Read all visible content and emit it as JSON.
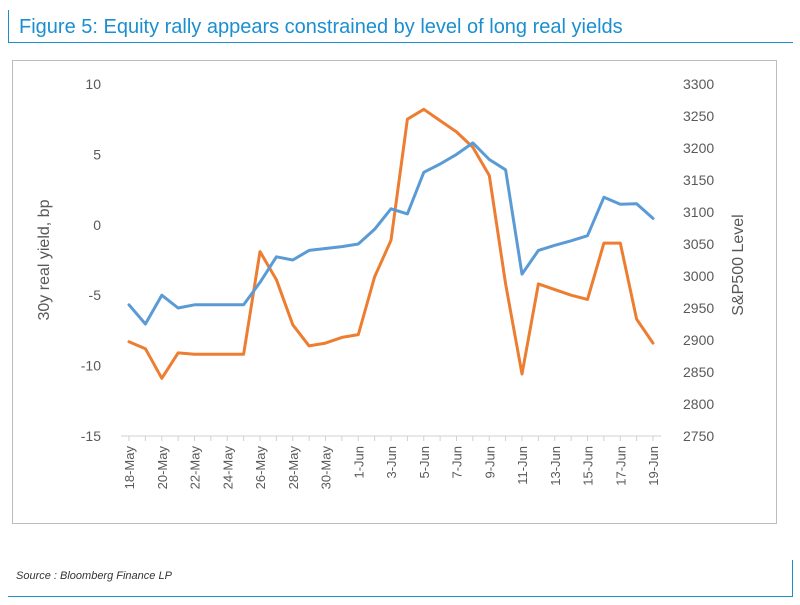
{
  "figure": {
    "title": "Figure 5: Equity rally appears constrained by level of long real yields",
    "source": "Source : Bloomberg Finance LP",
    "accent_color": "#1a8fd0"
  },
  "chart_data": {
    "type": "line",
    "ylabel": "30y real yield, bp",
    "y2label": "S&P500 Level",
    "ylim": [
      -15,
      10
    ],
    "y2lim": [
      2750,
      3300
    ],
    "y_ticks": [
      "10",
      "5",
      "0",
      "-5",
      "-10",
      "-15"
    ],
    "y2_ticks": [
      "3300",
      "3250",
      "3200",
      "3150",
      "3100",
      "3050",
      "3000",
      "2950",
      "2900",
      "2850",
      "2800",
      "2750"
    ],
    "x": [
      "18-May",
      "19-May",
      "20-May",
      "21-May",
      "22-May",
      "23-May",
      "24-May",
      "25-May",
      "26-May",
      "27-May",
      "28-May",
      "29-May",
      "30-May",
      "31-May",
      "1-Jun",
      "2-Jun",
      "3-Jun",
      "4-Jun",
      "5-Jun",
      "6-Jun",
      "7-Jun",
      "8-Jun",
      "9-Jun",
      "10-Jun",
      "11-Jun",
      "12-Jun",
      "13-Jun",
      "14-Jun",
      "15-Jun",
      "16-Jun",
      "17-Jun",
      "18-Jun",
      "19-Jun"
    ],
    "x_tick_labels": [
      "18-May",
      "20-May",
      "22-May",
      "24-May",
      "26-May",
      "28-May",
      "30-May",
      "1-Jun",
      "3-Jun",
      "5-Jun",
      "7-Jun",
      "9-Jun",
      "11-Jun",
      "13-Jun",
      "15-Jun",
      "17-Jun",
      "19-Jun"
    ],
    "series": [
      {
        "axis": "left",
        "color": "#ed7d31",
        "values": [
          -8.3,
          -8.8,
          -10.9,
          -9.1,
          -9.2,
          -9.2,
          -9.2,
          -9.2,
          -1.9,
          -3.9,
          -7.1,
          -8.6,
          -8.4,
          -8.0,
          -7.8,
          -3.7,
          -1.1,
          7.5,
          8.2,
          7.4,
          6.6,
          5.5,
          3.5,
          -4.2,
          -10.6,
          -4.2,
          -4.6,
          -5.0,
          -5.3,
          -1.3,
          -1.3,
          -6.7,
          -8.4
        ]
      },
      {
        "axis": "right",
        "color": "#5b9bd5",
        "values": [
          2955,
          2925,
          2970,
          2950,
          2955,
          2955,
          2955,
          2955,
          2990,
          3030,
          3025,
          3040,
          3043,
          3046,
          3050,
          3073,
          3105,
          3097,
          3162,
          3175,
          3190,
          3208,
          3182,
          3166,
          3003,
          3040,
          3048,
          3055,
          3063,
          3123,
          3112,
          3113,
          3090
        ]
      }
    ],
    "grid": false,
    "legend": "none"
  }
}
